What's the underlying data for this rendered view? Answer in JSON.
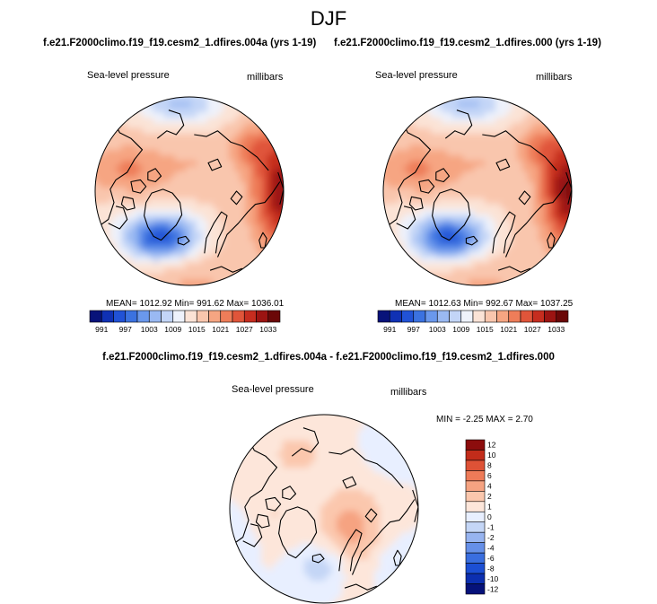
{
  "main_title": "DJF",
  "colors": {
    "pressure_palette": [
      "#08137a",
      "#1031b4",
      "#2152d6",
      "#3b72e0",
      "#6a98ec",
      "#9ab9f2",
      "#c3d5f7",
      "#eef2fb",
      "#fbe3d6",
      "#f9c6ad",
      "#f6a582",
      "#ee7d59",
      "#e0553a",
      "#c62d1f",
      "#9c1412",
      "#6b0808"
    ],
    "diff_palette": [
      "#06127a",
      "#0c2fb0",
      "#1c4fd4",
      "#3a6edf",
      "#6690e8",
      "#97b4f0",
      "#c4d6f6",
      "#e8efff",
      "#fde6da",
      "#fbc7ad",
      "#f6a381",
      "#ee7b58",
      "#de5236",
      "#c22c1a",
      "#8c0d0d"
    ],
    "coast": "#000000"
  },
  "panels": [
    {
      "case_title": "f.e21.F2000climo.f19_f19.cesm2_1.dfires.004a (yrs 1-19)",
      "variable": "Sea-level pressure",
      "units": "millibars",
      "stats": "MEAN= 1012.92  Min= 991.62  Max= 1036.01"
    },
    {
      "case_title": "f.e21.F2000climo.f19_f19.cesm2_1.dfires.000 (yrs 1-19)",
      "variable": "Sea-level pressure",
      "units": "millibars",
      "stats": "MEAN= 1012.63  Min= 992.67  Max= 1037.25"
    }
  ],
  "pressure_labelbar": {
    "tick_labels": [
      "991",
      "997",
      "1003",
      "1009",
      "1015",
      "1021",
      "1027",
      "1033"
    ]
  },
  "difference": {
    "title": "f.e21.F2000climo.f19_f19.cesm2_1.dfires.004a - f.e21.F2000climo.f19_f19.cesm2_1.dfires.000",
    "variable": "Sea-level pressure",
    "units": "millibars",
    "stats": "MIN = -2.25 MAX =   2.70",
    "tick_labels": [
      "12",
      "10",
      "8",
      "6",
      "4",
      "2",
      "1",
      "0",
      "-1",
      "-2",
      "-4",
      "-6",
      "-8",
      "-10",
      "-12"
    ]
  },
  "chart_data": [
    {
      "type": "heatmap",
      "title": "f.e21.F2000climo.f19_f19.cesm2_1.dfires.004a (yrs 1-19)",
      "variable": "Sea-level pressure",
      "units": "millibars",
      "projection": "polar stereographic (north pole)",
      "mean": 1012.92,
      "min": 991.62,
      "max": 1036.01,
      "contour_levels": [
        991,
        994,
        997,
        1000,
        1003,
        1006,
        1009,
        1012,
        1015,
        1018,
        1021,
        1024,
        1027,
        1030,
        1033
      ],
      "colorbar_labels": [
        "991",
        "997",
        "1003",
        "1009",
        "1015",
        "1021",
        "1027",
        "1033"
      ]
    },
    {
      "type": "heatmap",
      "title": "f.e21.F2000climo.f19_f19.cesm2_1.dfires.000 (yrs 1-19)",
      "variable": "Sea-level pressure",
      "units": "millibars",
      "projection": "polar stereographic (north pole)",
      "mean": 1012.63,
      "min": 992.67,
      "max": 1037.25,
      "contour_levels": [
        991,
        994,
        997,
        1000,
        1003,
        1006,
        1009,
        1012,
        1015,
        1018,
        1021,
        1024,
        1027,
        1030,
        1033
      ],
      "colorbar_labels": [
        "991",
        "997",
        "1003",
        "1009",
        "1015",
        "1021",
        "1027",
        "1033"
      ]
    },
    {
      "type": "heatmap",
      "title": "f.e21.F2000climo.f19_f19.cesm2_1.dfires.004a - f.e21.F2000climo.f19_f19.cesm2_1.dfires.000",
      "variable": "Sea-level pressure",
      "units": "millibars",
      "projection": "polar stereographic (north pole)",
      "min": -2.25,
      "max": 2.7,
      "contour_levels": [
        -12,
        -10,
        -8,
        -6,
        -4,
        -2,
        -1,
        0,
        1,
        2,
        4,
        6,
        8,
        10,
        12
      ],
      "colorbar_labels": [
        "12",
        "10",
        "8",
        "6",
        "4",
        "2",
        "1",
        "0",
        "-1",
        "-2",
        "-4",
        "-6",
        "-8",
        "-10",
        "-12"
      ]
    }
  ]
}
